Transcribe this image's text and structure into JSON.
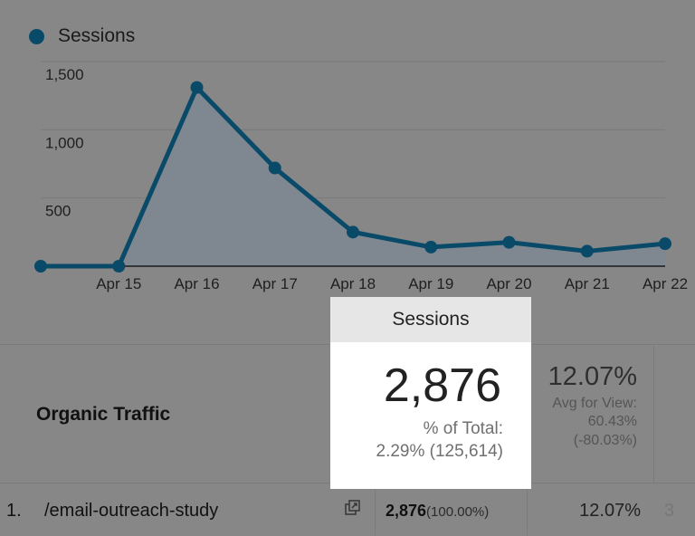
{
  "legend": {
    "label": "Sessions",
    "color": "#0a4a69"
  },
  "chart_data": {
    "type": "area",
    "categories": [
      "",
      "Apr 15",
      "Apr 16",
      "Apr 17",
      "Apr 18",
      "Apr 19",
      "Apr 20",
      "Apr 21",
      "Apr 22"
    ],
    "series": [
      {
        "name": "Sessions",
        "values": [
          0,
          0,
          1310,
          720,
          250,
          140,
          175,
          110,
          165
        ]
      }
    ],
    "y_ticks": [
      "500",
      "1,000",
      "1,500"
    ],
    "ylim": [
      0,
      1500
    ],
    "grid": true,
    "line_color": "#0a4a69",
    "fill_color": "#7e8891"
  },
  "popup": {
    "title": "Sessions",
    "value": "2,876",
    "total_label": "% of Total:",
    "total_value": "2.29% (125,614)"
  },
  "summary": {
    "segment_label": "Organic Traffic",
    "rate": "12.07%",
    "avg_label": "Avg for View:",
    "avg_value": "60.43%",
    "avg_diff": "(-80.03%)"
  },
  "row": {
    "index": "1.",
    "page": "/email-outreach-study",
    "sessions": "2,876",
    "sessions_pct": "(100.00%)",
    "rate": "12.07%",
    "truncated": "3"
  }
}
